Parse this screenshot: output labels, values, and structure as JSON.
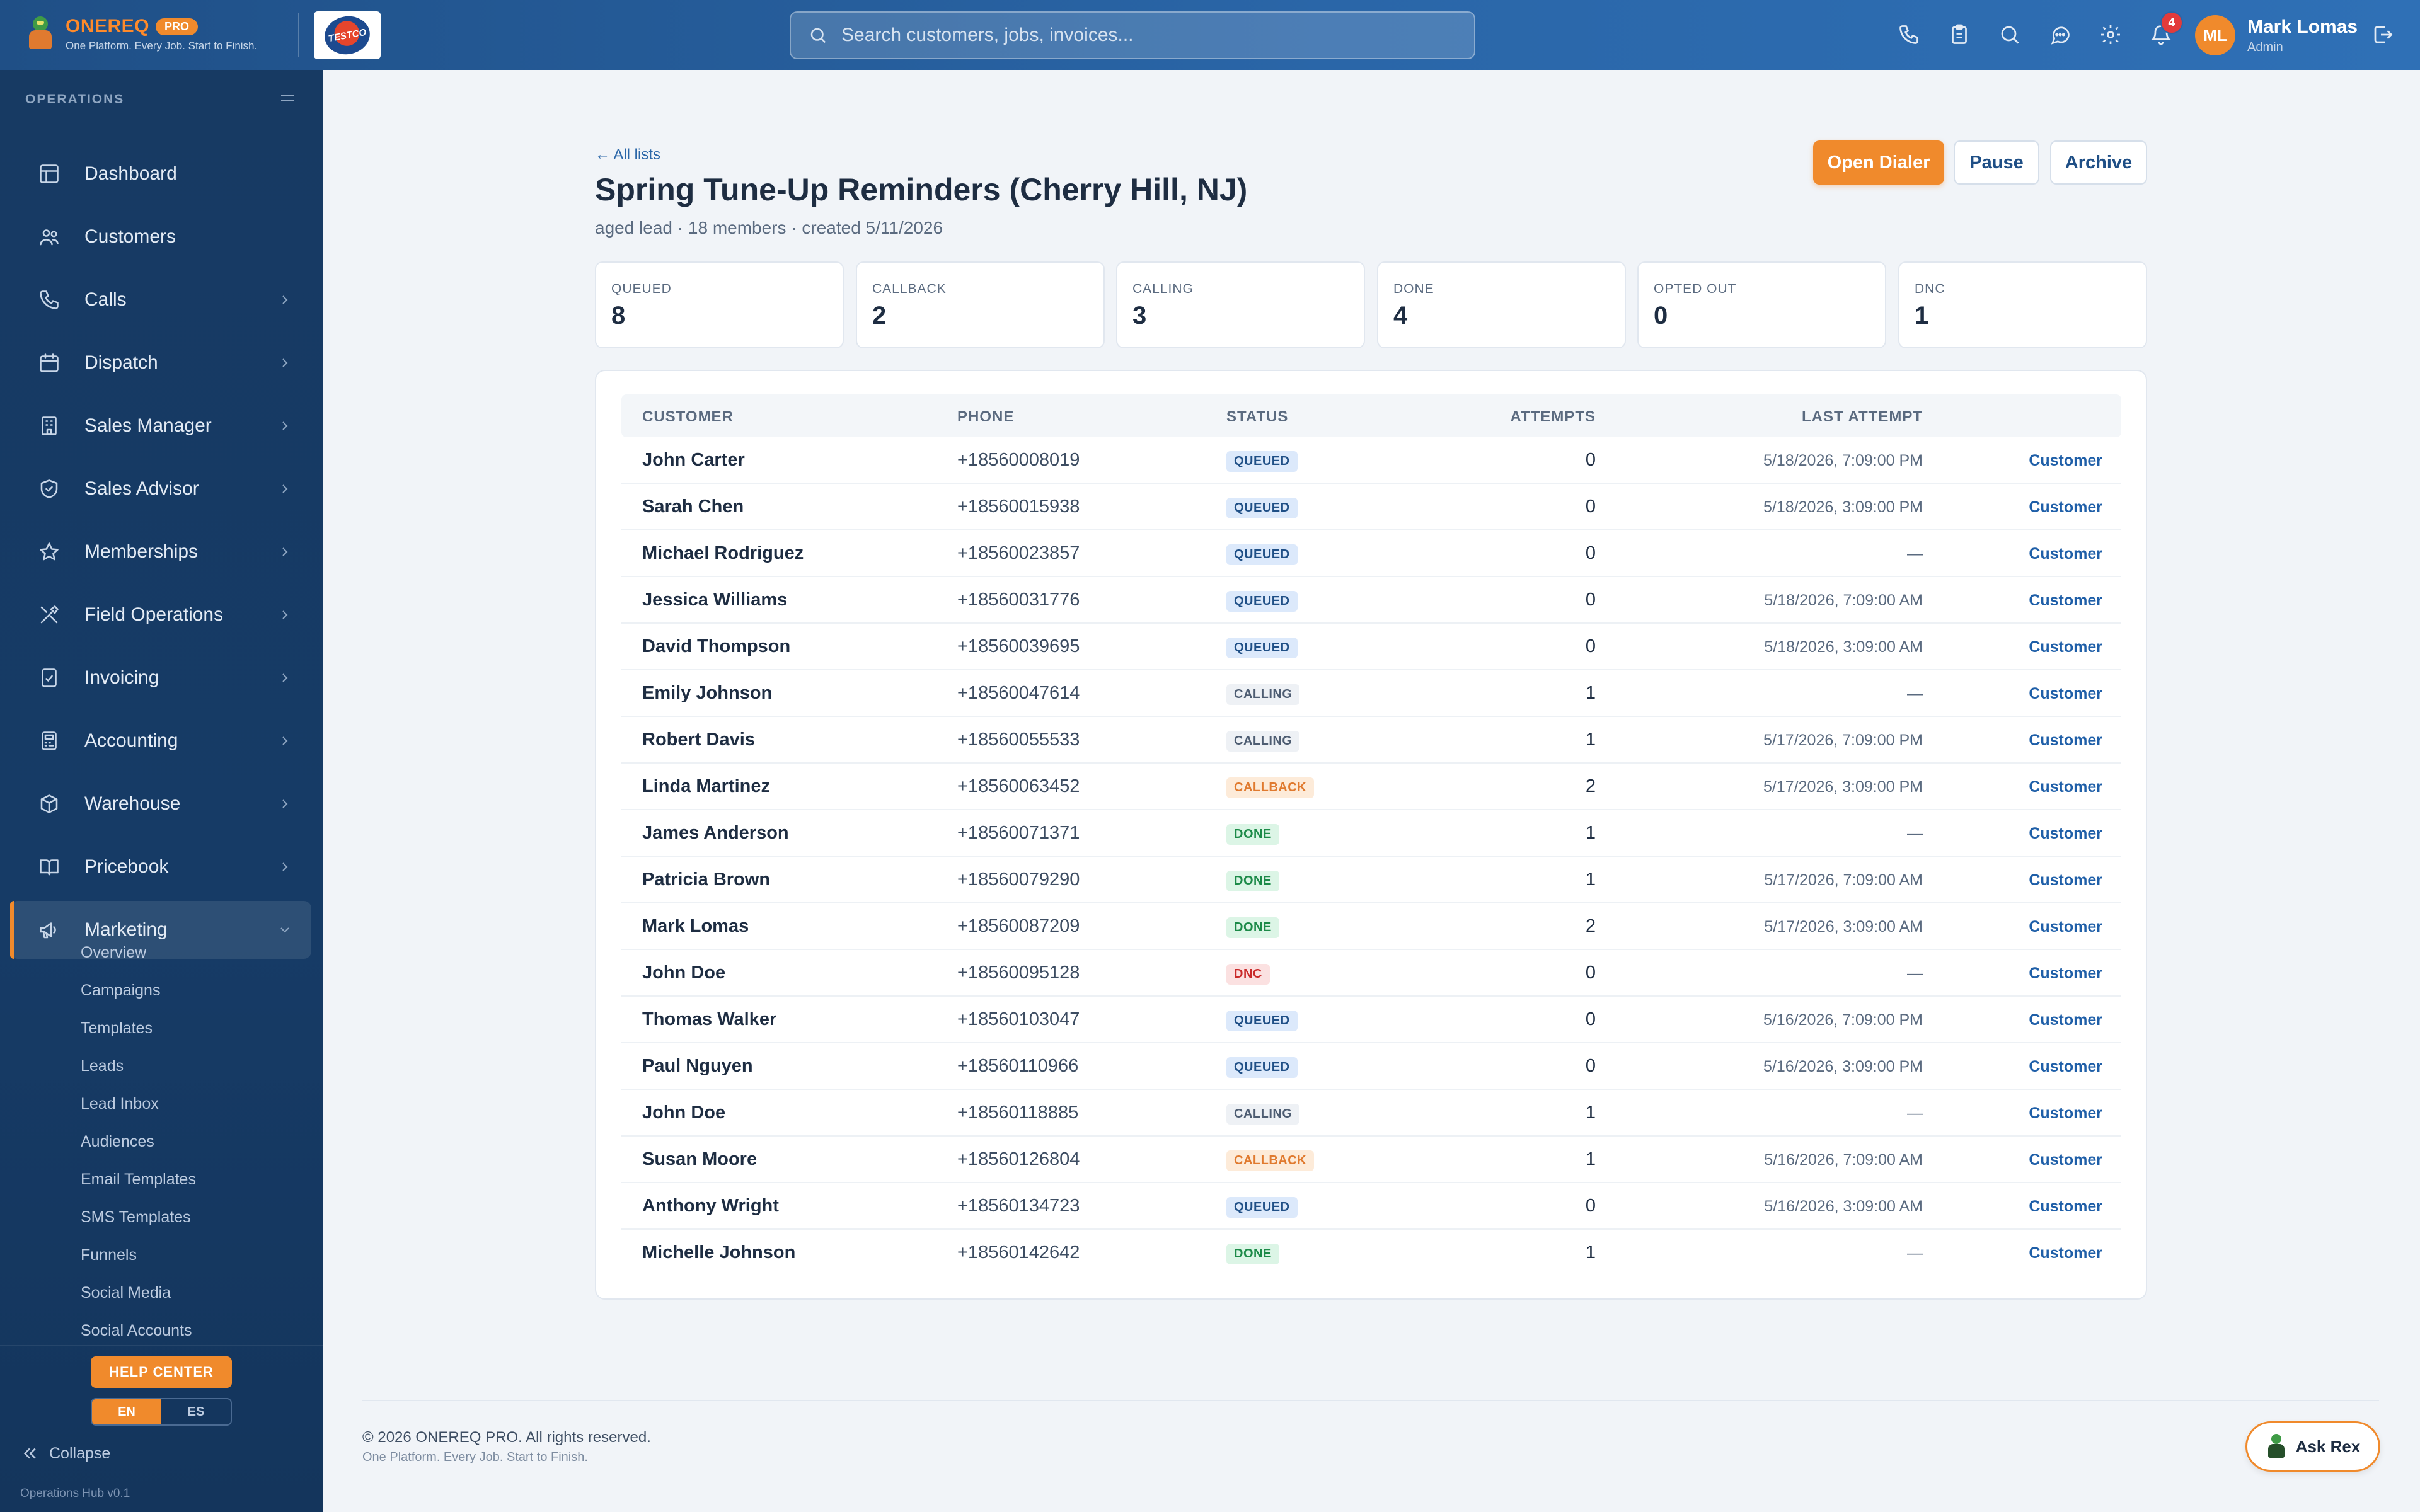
{
  "app": {
    "brand_name": "ONEREQ",
    "brand_badge": "PRO",
    "brand_tagline": "One Platform. Every Job. Start to Finish.",
    "company_logo_text": "TESTCO"
  },
  "header": {
    "search_placeholder": "Search customers, jobs, invoices...",
    "notification_count": "4",
    "user_initials": "ML",
    "user_name": "Mark Lomas",
    "user_role": "Admin"
  },
  "sidebar": {
    "section": "OPERATIONS",
    "items": [
      {
        "label": "Dashboard",
        "icon": "dashboard-icon"
      },
      {
        "label": "Customers",
        "icon": "users-icon"
      },
      {
        "label": "Calls",
        "icon": "phone-icon"
      },
      {
        "label": "Dispatch",
        "icon": "calendar-icon"
      },
      {
        "label": "Sales Manager",
        "icon": "building-icon"
      },
      {
        "label": "Sales Advisor",
        "icon": "shield-icon"
      },
      {
        "label": "Memberships",
        "icon": "star-icon"
      },
      {
        "label": "Field Operations",
        "icon": "tools-icon"
      },
      {
        "label": "Invoicing",
        "icon": "invoice-icon"
      },
      {
        "label": "Accounting",
        "icon": "calculator-icon"
      },
      {
        "label": "Warehouse",
        "icon": "box-icon"
      },
      {
        "label": "Pricebook",
        "icon": "book-icon"
      },
      {
        "label": "Marketing",
        "icon": "megaphone-icon"
      }
    ],
    "marketing_sub": [
      "Overview",
      "Campaigns",
      "Templates",
      "Leads",
      "Lead Inbox",
      "Audiences",
      "Email Templates",
      "SMS Templates",
      "Funnels",
      "Social Media",
      "Social Accounts"
    ],
    "help_center": "HELP CENTER",
    "lang_en": "EN",
    "lang_es": "ES",
    "collapse": "Collapse",
    "version": "Operations Hub v0.1"
  },
  "page": {
    "back_link": "← All lists",
    "title": "Spring Tune-Up Reminders (Cherry Hill, NJ)",
    "subtitle": "aged lead · 18 members · created 5/11/2026",
    "open_dialer": "Open Dialer",
    "pause": "Pause",
    "archive": "Archive"
  },
  "stats": [
    {
      "label": "QUEUED",
      "value": "8"
    },
    {
      "label": "CALLBACK",
      "value": "2"
    },
    {
      "label": "CALLING",
      "value": "3"
    },
    {
      "label": "DONE",
      "value": "4"
    },
    {
      "label": "OPTED OUT",
      "value": "0"
    },
    {
      "label": "DNC",
      "value": "1"
    }
  ],
  "table": {
    "columns": [
      "CUSTOMER",
      "PHONE",
      "STATUS",
      "ATTEMPTS",
      "LAST ATTEMPT"
    ],
    "link_label": "Customer",
    "rows": [
      {
        "name": "John Carter",
        "phone": "+18560008019",
        "status": "QUEUED",
        "attempts": "0",
        "last": "5/18/2026, 7:09:00 PM"
      },
      {
        "name": "Sarah Chen",
        "phone": "+18560015938",
        "status": "QUEUED",
        "attempts": "0",
        "last": "5/18/2026, 3:09:00 PM"
      },
      {
        "name": "Michael Rodriguez",
        "phone": "+18560023857",
        "status": "QUEUED",
        "attempts": "0",
        "last": "—"
      },
      {
        "name": "Jessica Williams",
        "phone": "+18560031776",
        "status": "QUEUED",
        "attempts": "0",
        "last": "5/18/2026, 7:09:00 AM"
      },
      {
        "name": "David Thompson",
        "phone": "+18560039695",
        "status": "QUEUED",
        "attempts": "0",
        "last": "5/18/2026, 3:09:00 AM"
      },
      {
        "name": "Emily Johnson",
        "phone": "+18560047614",
        "status": "CALLING",
        "attempts": "1",
        "last": "—"
      },
      {
        "name": "Robert Davis",
        "phone": "+18560055533",
        "status": "CALLING",
        "attempts": "1",
        "last": "5/17/2026, 7:09:00 PM"
      },
      {
        "name": "Linda Martinez",
        "phone": "+18560063452",
        "status": "CALLBACK",
        "attempts": "2",
        "last": "5/17/2026, 3:09:00 PM"
      },
      {
        "name": "James Anderson",
        "phone": "+18560071371",
        "status": "DONE",
        "attempts": "1",
        "last": "—"
      },
      {
        "name": "Patricia Brown",
        "phone": "+18560079290",
        "status": "DONE",
        "attempts": "1",
        "last": "5/17/2026, 7:09:00 AM"
      },
      {
        "name": "Mark Lomas",
        "phone": "+18560087209",
        "status": "DONE",
        "attempts": "2",
        "last": "5/17/2026, 3:09:00 AM"
      },
      {
        "name": "John Doe",
        "phone": "+18560095128",
        "status": "DNC",
        "attempts": "0",
        "last": "—"
      },
      {
        "name": "Thomas Walker",
        "phone": "+18560103047",
        "status": "QUEUED",
        "attempts": "0",
        "last": "5/16/2026, 7:09:00 PM"
      },
      {
        "name": "Paul Nguyen",
        "phone": "+18560110966",
        "status": "QUEUED",
        "attempts": "0",
        "last": "5/16/2026, 3:09:00 PM"
      },
      {
        "name": "John Doe",
        "phone": "+18560118885",
        "status": "CALLING",
        "attempts": "1",
        "last": "—"
      },
      {
        "name": "Susan Moore",
        "phone": "+18560126804",
        "status": "CALLBACK",
        "attempts": "1",
        "last": "5/16/2026, 7:09:00 AM"
      },
      {
        "name": "Anthony Wright",
        "phone": "+18560134723",
        "status": "QUEUED",
        "attempts": "0",
        "last": "5/16/2026, 3:09:00 AM"
      },
      {
        "name": "Michelle Johnson",
        "phone": "+18560142642",
        "status": "DONE",
        "attempts": "1",
        "last": "—"
      }
    ]
  },
  "footer": {
    "copyright": "© 2026 ONEREQ PRO. All rights reserved.",
    "tagline": "One Platform. Every Job. Start to Finish.",
    "ask": "Ask Rex"
  },
  "colors": {
    "accent": "#f08a2c",
    "header": "#2a66a8",
    "sidebar": "#163b66"
  }
}
